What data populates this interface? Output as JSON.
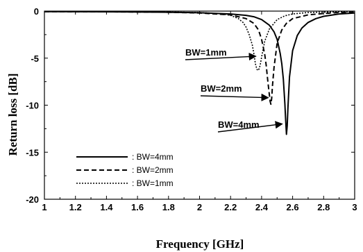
{
  "chart_data": {
    "type": "line",
    "xlabel": "Frequency [GHz]",
    "ylabel": "Return loss [dB]",
    "xlim": [
      1,
      3
    ],
    "ylim": [
      -20,
      0
    ],
    "xticks": [
      "1",
      "1.2",
      "1.4",
      "1.6",
      "1.8",
      "2",
      "2.2",
      "2.4",
      "2.6",
      "2.8",
      "3"
    ],
    "yticks": [
      "0",
      "-5",
      "-10",
      "-15",
      "-20"
    ],
    "grid": false,
    "legend_position": "lower-left",
    "series": [
      {
        "name": "BW=4mm",
        "legend_label": ": BW=4mm",
        "style": "solid",
        "x": [
          1.0,
          1.5,
          1.8,
          2.0,
          2.2,
          2.3,
          2.35,
          2.4,
          2.45,
          2.48,
          2.5,
          2.52,
          2.53,
          2.54,
          2.55,
          2.555,
          2.56,
          2.565,
          2.57,
          2.58,
          2.6,
          2.63,
          2.66,
          2.7,
          2.75,
          2.8,
          2.9,
          3.0
        ],
        "y": [
          -0.05,
          -0.08,
          -0.12,
          -0.18,
          -0.3,
          -0.45,
          -0.6,
          -0.9,
          -1.5,
          -2.2,
          -3.0,
          -4.5,
          -5.6,
          -7.2,
          -9.8,
          -11.5,
          -13.1,
          -12.2,
          -10.2,
          -7.0,
          -4.2,
          -2.6,
          -1.8,
          -1.2,
          -0.8,
          -0.55,
          -0.3,
          -0.2
        ]
      },
      {
        "name": "BW=2mm",
        "legend_label": ": BW=2mm",
        "style": "dashed",
        "x": [
          1.0,
          1.5,
          1.8,
          2.0,
          2.2,
          2.3,
          2.35,
          2.38,
          2.4,
          2.42,
          2.43,
          2.44,
          2.45,
          2.455,
          2.46,
          2.465,
          2.47,
          2.48,
          2.5,
          2.53,
          2.56,
          2.6,
          2.7,
          2.8,
          2.9,
          3.0
        ],
        "y": [
          -0.05,
          -0.08,
          -0.12,
          -0.2,
          -0.4,
          -0.8,
          -1.3,
          -2.0,
          -3.0,
          -4.6,
          -5.8,
          -7.4,
          -8.9,
          -9.6,
          -9.9,
          -9.3,
          -8.0,
          -6.0,
          -3.4,
          -2.0,
          -1.3,
          -0.8,
          -0.4,
          -0.25,
          -0.15,
          -0.1
        ]
      },
      {
        "name": "BW=1mm",
        "legend_label": ": BW=1mm",
        "style": "dotted",
        "x": [
          1.0,
          1.5,
          1.8,
          2.0,
          2.15,
          2.2,
          2.25,
          2.28,
          2.3,
          2.32,
          2.34,
          2.35,
          2.36,
          2.37,
          2.38,
          2.39,
          2.4,
          2.42,
          2.45,
          2.5,
          2.55,
          2.6,
          2.7,
          2.8,
          2.9,
          3.0
        ],
        "y": [
          -0.05,
          -0.07,
          -0.1,
          -0.15,
          -0.3,
          -0.45,
          -0.8,
          -1.2,
          -1.7,
          -2.5,
          -3.6,
          -4.5,
          -5.6,
          -6.2,
          -6.3,
          -5.8,
          -4.9,
          -3.2,
          -1.9,
          -0.9,
          -0.5,
          -0.3,
          -0.15,
          -0.1,
          -0.08,
          -0.05
        ]
      }
    ],
    "annotations": [
      {
        "text": "BW=1mm",
        "arrow_to": [
          2.38,
          -4.8
        ]
      },
      {
        "text": "BW=2mm",
        "arrow_to": [
          2.46,
          -9.2
        ]
      },
      {
        "text": "BW=4mm",
        "arrow_to": [
          2.55,
          -12.0
        ]
      }
    ]
  }
}
